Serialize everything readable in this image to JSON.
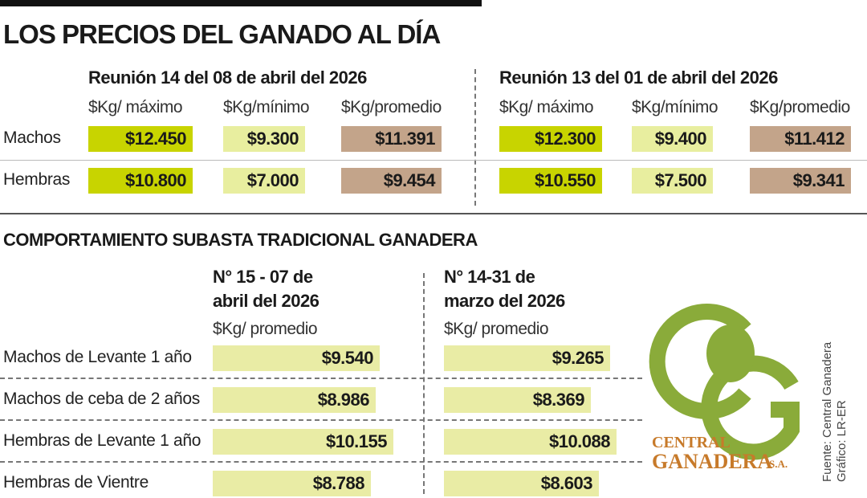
{
  "title": "LOS PRECIOS DEL GANADO AL DÍA",
  "row_labels": [
    "Machos",
    "Hembras"
  ],
  "meetings": [
    {
      "heading": "Reunión 14 del 08 de abril del 2026",
      "columns": [
        "$Kg/ máximo",
        "$Kg/mínimo",
        "$Kg/promedio"
      ],
      "rows": [
        [
          "$12.450",
          "$9.300",
          "$11.391"
        ],
        [
          "$10.800",
          "$7.000",
          "$9.454"
        ]
      ]
    },
    {
      "heading": "Reunión 13 del 01 de abril del 2026",
      "columns": [
        "$Kg/ máximo",
        "$Kg/mínimo",
        "$Kg/promedio"
      ],
      "rows": [
        [
          "$12.300",
          "$9.400",
          "$11.412"
        ],
        [
          "$10.550",
          "$7.500",
          "$9.341"
        ]
      ]
    }
  ],
  "auction": {
    "title": "COMPORTAMIENTO SUBASTA TRADICIONAL GANADERA",
    "columns": [
      {
        "heading": [
          "N° 15 - 07 de",
          "abril del 2026"
        ],
        "subheading": "$Kg/ promedio"
      },
      {
        "heading": [
          "N° 14-31 de",
          "marzo del 2026"
        ],
        "subheading": "$Kg/ promedio"
      }
    ],
    "rows": [
      {
        "label": "Machos de Levante 1 año",
        "values": [
          "$9.540",
          "$9.265"
        ]
      },
      {
        "label": "Machos de ceba de 2 años",
        "values": [
          "$8.986",
          "$8.369"
        ]
      },
      {
        "label": "Hembras de Levante 1 año",
        "values": [
          "$10.155",
          "$10.088"
        ]
      },
      {
        "label": "Hembras de Vientre",
        "values": [
          "$8.788",
          "$8.603"
        ]
      }
    ]
  },
  "logo": {
    "line1": "CENTRAL",
    "line2": "GANADERA",
    "suffix": "S.A."
  },
  "credits": [
    "Fuente: Central Ganadera",
    "Gráfico: LR-ER"
  ]
}
